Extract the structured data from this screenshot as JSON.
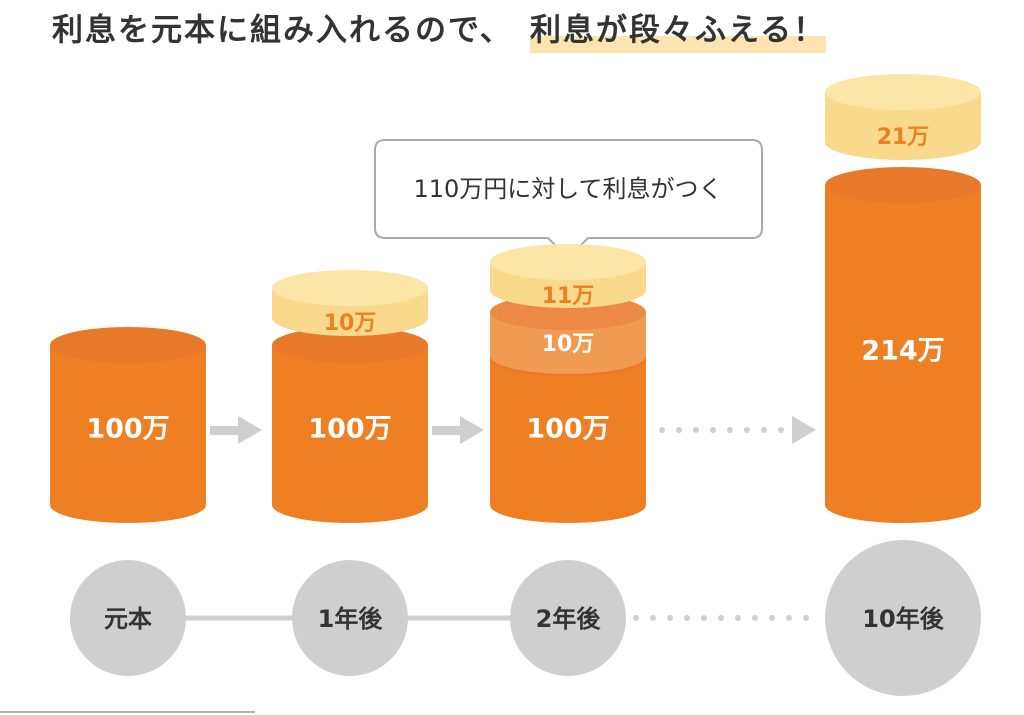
{
  "title": [
    "利息を元本に組み入れるので、",
    "利息が段々ふえる！"
  ],
  "callout": "110万円に対して利息がつく",
  "columns": [
    {
      "label": "元本",
      "segments": [
        "100万"
      ]
    },
    {
      "label": "1年後",
      "segments": [
        "100万",
        "10万"
      ]
    },
    {
      "label": "2年後",
      "segments": [
        "100万",
        "10万",
        "11万"
      ]
    },
    {
      "label": "10年後",
      "segments": [
        "214万",
        "21万"
      ]
    }
  ]
}
